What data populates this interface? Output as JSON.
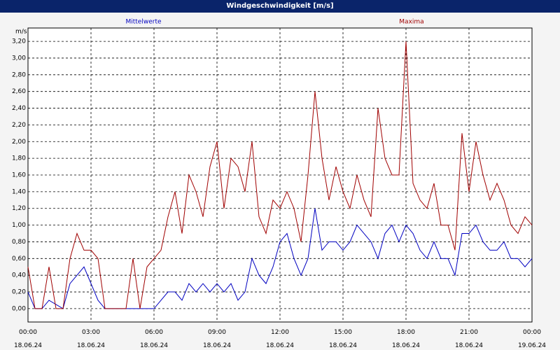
{
  "chart_data": {
    "type": "line",
    "title": "Windgeschwindigkeit [m/s]",
    "ylabel": "m/s",
    "x": [
      0,
      20,
      40,
      60,
      80,
      100,
      120,
      140,
      160,
      180,
      200,
      220,
      240,
      260,
      280,
      300,
      320,
      340,
      360,
      380,
      400,
      420,
      440,
      460,
      480,
      500,
      520,
      540,
      560,
      580,
      600,
      620,
      640,
      660,
      680,
      700,
      720,
      740,
      760,
      780,
      800,
      820,
      840,
      860,
      880,
      900,
      920,
      940,
      960,
      980,
      1000,
      1020,
      1040,
      1060,
      1080,
      1100,
      1120,
      1140,
      1160,
      1180,
      1200,
      1220,
      1240,
      1260,
      1280,
      1300,
      1320,
      1340,
      1360,
      1380,
      1400,
      1420,
      1440
    ],
    "series": [
      {
        "name": "Mittelwerte",
        "color": "#0000c0",
        "values": [
          0.2,
          0,
          0,
          0.1,
          0.05,
          0,
          0.3,
          0.4,
          0.5,
          0.3,
          0.1,
          0,
          0,
          0,
          0,
          0,
          0,
          0,
          0,
          0.1,
          0.2,
          0.2,
          0.1,
          0.3,
          0.2,
          0.3,
          0.2,
          0.3,
          0.2,
          0.3,
          0.1,
          0.2,
          0.6,
          0.4,
          0.3,
          0.5,
          0.8,
          0.9,
          0.6,
          0.4,
          0.6,
          1.2,
          0.7,
          0.8,
          0.8,
          0.7,
          0.8,
          1.0,
          0.9,
          0.8,
          0.6,
          0.9,
          1.0,
          0.8,
          1.0,
          0.9,
          0.7,
          0.6,
          0.8,
          0.6,
          0.6,
          0.4,
          0.9,
          0.9,
          1.0,
          0.8,
          0.7,
          0.7,
          0.8,
          0.6,
          0.6,
          0.5,
          0.6
        ]
      },
      {
        "name": "Maxima",
        "color": "#a00000",
        "values": [
          0.5,
          0,
          0,
          0.5,
          0,
          0,
          0.6,
          0.9,
          0.7,
          0.7,
          0.6,
          0,
          0,
          0,
          0,
          0.6,
          0,
          0.5,
          0.6,
          0.7,
          1.1,
          1.4,
          0.9,
          1.6,
          1.4,
          1.1,
          1.7,
          2.0,
          1.2,
          1.8,
          1.7,
          1.4,
          2.0,
          1.1,
          0.9,
          1.3,
          1.2,
          1.4,
          1.2,
          0.8,
          1.6,
          2.6,
          1.8,
          1.3,
          1.7,
          1.4,
          1.2,
          1.6,
          1.3,
          1.1,
          2.4,
          1.8,
          1.6,
          1.6,
          3.2,
          1.5,
          1.3,
          1.2,
          1.5,
          1.0,
          1.0,
          0.7,
          2.1,
          1.4,
          2.0,
          1.6,
          1.3,
          1.5,
          1.3,
          1.0,
          0.9,
          1.1,
          1.0
        ]
      }
    ],
    "xlim": [
      0,
      1440
    ],
    "xticks": [
      {
        "value": 0,
        "label": "00:00\n18.06.24"
      },
      {
        "value": 180,
        "label": "03:00\n18.06.24"
      },
      {
        "value": 360,
        "label": "06:00\n18.06.24"
      },
      {
        "value": 540,
        "label": "09:00\n18.06.24"
      },
      {
        "value": 720,
        "label": "12:00\n18.06.24"
      },
      {
        "value": 900,
        "label": "15:00\n18.06.24"
      },
      {
        "value": 1080,
        "label": "18:00\n18.06.24"
      },
      {
        "value": 1260,
        "label": "21:00\n18.06.24"
      },
      {
        "value": 1440,
        "label": "00:00\n19.06.24"
      }
    ],
    "ylim": [
      -0.16,
      3.36
    ],
    "yticks": [
      {
        "value": 0,
        "label": "0,00"
      },
      {
        "value": 0.2,
        "label": "0,20"
      },
      {
        "value": 0.4,
        "label": "0,40"
      },
      {
        "value": 0.6,
        "label": "0,60"
      },
      {
        "value": 0.8,
        "label": "0,80"
      },
      {
        "value": 1.0,
        "label": "1,00"
      },
      {
        "value": 1.2,
        "label": "1,20"
      },
      {
        "value": 1.4,
        "label": "1,40"
      },
      {
        "value": 1.6,
        "label": "1,60"
      },
      {
        "value": 1.8,
        "label": "1,80"
      },
      {
        "value": 2.0,
        "label": "2,00"
      },
      {
        "value": 2.2,
        "label": "2,20"
      },
      {
        "value": 2.4,
        "label": "2,40"
      },
      {
        "value": 2.6,
        "label": "2,60"
      },
      {
        "value": 2.8,
        "label": "2,80"
      },
      {
        "value": 3.0,
        "label": "3,00"
      },
      {
        "value": 3.2,
        "label": "3,20"
      }
    ],
    "grid": true
  }
}
